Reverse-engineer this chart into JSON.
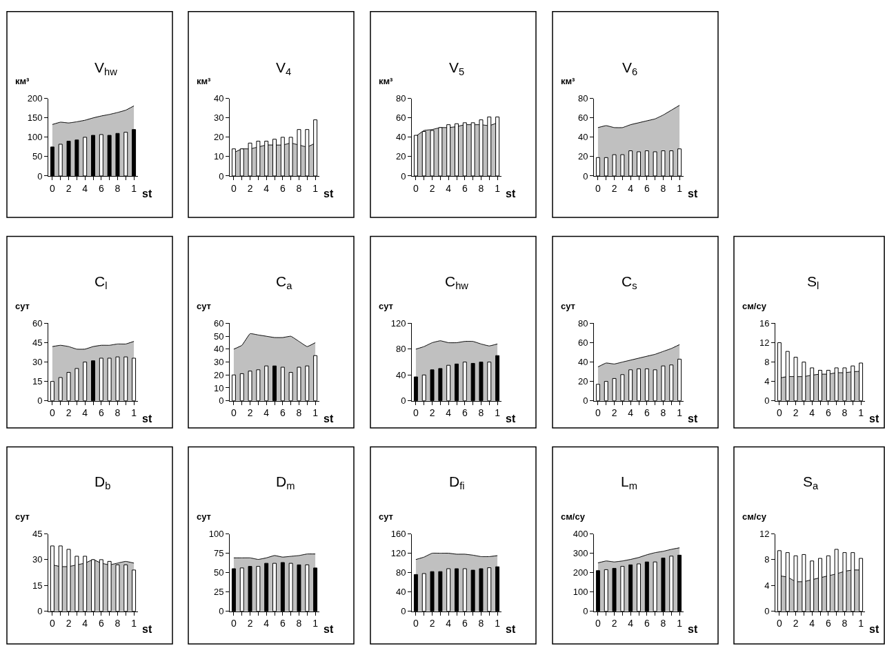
{
  "chart_data": [
    {
      "type": "bar",
      "title": "V$_{hw}$",
      "ylabel": "км³",
      "xlabel": "st",
      "categories": [
        "0",
        null,
        "2",
        null,
        "4",
        null,
        "6",
        null,
        "8",
        null,
        "1"
      ],
      "ylim": [
        0,
        200
      ],
      "yticks": [
        0,
        50,
        100,
        150,
        200
      ],
      "series": [
        {
          "type": "area",
          "color": "#c0c0c0",
          "values": [
            133,
            139,
            137,
            140,
            144,
            150,
            155,
            159,
            164,
            170,
            181
          ]
        },
        {
          "colors": [
            "#000000",
            "#ffffff",
            "#000000",
            "#000000",
            "#ffffff",
            "#000000",
            "#ffffff",
            "#000000",
            "#000000",
            "#ffffff",
            "#000000"
          ],
          "values": [
            75,
            82,
            90,
            93,
            100,
            105,
            107,
            105,
            110,
            113,
            120
          ]
        }
      ]
    },
    {
      "type": "bar",
      "title": "V$_{4}$",
      "ylabel": "км³",
      "xlabel": "st",
      "categories": [
        "0",
        null,
        "2",
        null,
        "4",
        null,
        "6",
        null,
        "8",
        null,
        "1"
      ],
      "ylim": [
        0,
        40
      ],
      "yticks": [
        0,
        10,
        20,
        30,
        40
      ],
      "series": [
        {
          "type": "area",
          "color": "#c0c0c0",
          "values": [
            12,
            14,
            14,
            15,
            16,
            16,
            16,
            17,
            16,
            15,
            17
          ]
        },
        {
          "type": "bar",
          "colors": [
            "#ffffff",
            "#ffffff",
            "#ffffff",
            "#ffffff",
            "#ffffff",
            "#ffffff",
            "#ffffff",
            "#ffffff",
            "#ffffff",
            "#ffffff",
            "#ffffff"
          ],
          "values": [
            14,
            14,
            17,
            18,
            18,
            19,
            20,
            20,
            24,
            24,
            29
          ]
        }
      ]
    },
    {
      "type": "bar",
      "title": "V$_{5}$",
      "ylabel": "км³",
      "xlabel": "st",
      "categories": [
        "0",
        null,
        "2",
        null,
        "4",
        null,
        "6",
        null,
        "8",
        null,
        "1"
      ],
      "ylim": [
        0,
        80
      ],
      "yticks": [
        0,
        20,
        40,
        60,
        80
      ],
      "series": [
        {
          "type": "area",
          "color": "#c0c0c0",
          "values": [
            41,
            47,
            48,
            50,
            50,
            51,
            53,
            53,
            53,
            52,
            55
          ]
        },
        {
          "type": "bar",
          "colors": [
            "#ffffff",
            "#ffffff",
            "#ffffff",
            "#ffffff",
            "#ffffff",
            "#ffffff",
            "#ffffff",
            "#ffffff",
            "#ffffff",
            "#ffffff",
            "#ffffff"
          ],
          "values": [
            42,
            46,
            47,
            50,
            53,
            54,
            55,
            55,
            58,
            61,
            61
          ]
        }
      ]
    },
    {
      "type": "bar",
      "title": "V$_{6}$",
      "ylabel": "км³",
      "xlabel": "st",
      "categories": [
        "0",
        null,
        "2",
        null,
        "4",
        null,
        "6",
        null,
        "8",
        null,
        "1"
      ],
      "ylim": [
        0,
        80
      ],
      "yticks": [
        0,
        20,
        40,
        60,
        80
      ],
      "series": [
        {
          "type": "area",
          "color": "#c0c0c0",
          "values": [
            50,
            52,
            50,
            50,
            53,
            55,
            57,
            59,
            63,
            68,
            73
          ]
        },
        {
          "type": "bar",
          "colors": [
            "#ffffff",
            "#ffffff",
            "#ffffff",
            "#ffffff",
            "#ffffff",
            "#ffffff",
            "#ffffff",
            "#ffffff",
            "#ffffff",
            "#ffffff",
            "#ffffff"
          ],
          "values": [
            19,
            19,
            22,
            22,
            26,
            25,
            26,
            25,
            26,
            26,
            28
          ]
        }
      ]
    },
    {
      "type": "bar",
      "title": "C$_{l}$",
      "ylabel": "сут",
      "xlabel": "st",
      "categories": [
        "0",
        null,
        "2",
        null,
        "4",
        null,
        "6",
        null,
        "8",
        null,
        "1"
      ],
      "ylim": [
        0,
        60
      ],
      "yticks": [
        0,
        15,
        30,
        45,
        60
      ],
      "series": [
        {
          "type": "area",
          "color": "#c0c0c0",
          "values": [
            42,
            43,
            42,
            40,
            40,
            42,
            43,
            43,
            44,
            44,
            46
          ]
        },
        {
          "type": "bar",
          "colors": [
            "#ffffff",
            "#ffffff",
            "#ffffff",
            "#ffffff",
            "#ffffff",
            "#000000",
            "#ffffff",
            "#ffffff",
            "#ffffff",
            "#ffffff",
            "#ffffff"
          ],
          "values": [
            15,
            18,
            22,
            25,
            30,
            31,
            33,
            33,
            34,
            34,
            33
          ]
        }
      ]
    },
    {
      "type": "bar",
      "title": "C$_{a}$",
      "ylabel": "сут",
      "xlabel": "st",
      "categories": [
        "0",
        null,
        "2",
        null,
        "4",
        null,
        "6",
        null,
        "8",
        null,
        "1"
      ],
      "ylim": [
        0,
        60
      ],
      "yticks": [
        0,
        10,
        20,
        30,
        40,
        50,
        60
      ],
      "series": [
        {
          "type": "area",
          "color": "#c0c0c0",
          "values": [
            40,
            43,
            52,
            51,
            50,
            49,
            49,
            50,
            46,
            42,
            45
          ]
        },
        {
          "type": "bar",
          "colors": [
            "#ffffff",
            "#ffffff",
            "#ffffff",
            "#ffffff",
            "#ffffff",
            "#000000",
            "#ffffff",
            "#ffffff",
            "#ffffff",
            "#ffffff",
            "#ffffff"
          ],
          "values": [
            20,
            21,
            23,
            24,
            27,
            27,
            26,
            22,
            26,
            27,
            35
          ]
        }
      ]
    },
    {
      "type": "bar",
      "title": "C$_{hw}$",
      "ylabel": "сут",
      "xlabel": "st",
      "categories": [
        "0",
        null,
        "2",
        null,
        "4",
        null,
        "6",
        null,
        "8",
        null,
        "1"
      ],
      "ylim": [
        0,
        120
      ],
      "yticks": [
        0,
        40,
        80,
        120
      ],
      "series": [
        {
          "type": "area",
          "color": "#c0c0c0",
          "values": [
            80,
            84,
            90,
            93,
            90,
            90,
            92,
            92,
            88,
            85,
            88
          ]
        },
        {
          "type": "bar",
          "colors": [
            "#000000",
            "#ffffff",
            "#000000",
            "#000000",
            "#ffffff",
            "#000000",
            "#ffffff",
            "#000000",
            "#000000",
            "#ffffff",
            "#000000"
          ],
          "values": [
            37,
            40,
            48,
            50,
            55,
            57,
            60,
            58,
            60,
            60,
            70
          ]
        }
      ]
    },
    {
      "type": "bar",
      "title": "C$_{s}$",
      "ylabel": "сут",
      "xlabel": "st",
      "categories": [
        "0",
        null,
        "2",
        null,
        "4",
        null,
        "6",
        null,
        "8",
        null,
        "1"
      ],
      "ylim": [
        0,
        80
      ],
      "yticks": [
        0,
        20,
        40,
        60,
        80
      ],
      "series": [
        {
          "type": "area",
          "color": "#c0c0c0",
          "values": [
            35,
            39,
            38,
            40,
            42,
            44,
            46,
            48,
            51,
            54,
            58
          ]
        },
        {
          "type": "bar",
          "colors": [
            "#ffffff",
            "#ffffff",
            "#ffffff",
            "#ffffff",
            "#ffffff",
            "#ffffff",
            "#ffffff",
            "#ffffff",
            "#ffffff",
            "#ffffff",
            "#ffffff"
          ],
          "values": [
            17,
            20,
            23,
            27,
            32,
            33,
            33,
            32,
            36,
            37,
            43
          ]
        }
      ]
    },
    {
      "type": "bar",
      "title": "S$_{l}$",
      "ylabel": "см/су",
      "xlabel": "st",
      "categories": [
        "0",
        null,
        "2",
        null,
        "4",
        null,
        "6",
        null,
        "8",
        null,
        "1"
      ],
      "ylim": [
        0,
        16
      ],
      "yticks": [
        0,
        4,
        8,
        12,
        16
      ],
      "series": [
        {
          "type": "area",
          "color": "#c0c0c0",
          "values": [
            4.7,
            5,
            5,
            5,
            5.3,
            5.5,
            5.5,
            5.8,
            5.8,
            6,
            6.1
          ]
        },
        {
          "type": "bar",
          "colors": [
            "#ffffff",
            "#ffffff",
            "#ffffff",
            "#ffffff",
            "#ffffff",
            "#ffffff",
            "#ffffff",
            "#ffffff",
            "#ffffff",
            "#ffffff",
            "#ffffff"
          ],
          "values": [
            12,
            10.2,
            9,
            8,
            6.8,
            6.3,
            6.3,
            6.8,
            6.8,
            7.2,
            7.8
          ]
        }
      ]
    },
    {
      "type": "bar",
      "title": "D$_{b}$",
      "ylabel": "сут",
      "xlabel": "st",
      "categories": [
        "0",
        null,
        "2",
        null,
        "4",
        null,
        "6",
        null,
        "8",
        null,
        "1"
      ],
      "ylim": [
        0,
        45
      ],
      "yticks": [
        0,
        15,
        30,
        45
      ],
      "series": [
        {
          "type": "area",
          "color": "#c0c0c0",
          "values": [
            27,
            26,
            26,
            27,
            28,
            30,
            28,
            27,
            28,
            29,
            28
          ]
        },
        {
          "type": "bar",
          "colors": [
            "#ffffff",
            "#ffffff",
            "#ffffff",
            "#ffffff",
            "#ffffff",
            "#ffffff",
            "#ffffff",
            "#ffffff",
            "#ffffff",
            "#ffffff",
            "#ffffff"
          ],
          "values": [
            38,
            38,
            36,
            32,
            32,
            30,
            30,
            29,
            27,
            27,
            24
          ]
        }
      ]
    },
    {
      "type": "bar",
      "title": "D$_{m}$",
      "ylabel": "сут",
      "xlabel": "st",
      "categories": [
        "0",
        null,
        "2",
        null,
        "4",
        null,
        "6",
        null,
        "8",
        null,
        "1"
      ],
      "ylim": [
        0,
        100
      ],
      "yticks": [
        0,
        25,
        50,
        75,
        100
      ],
      "series": [
        {
          "type": "area",
          "color": "#c0c0c0",
          "values": [
            69,
            69,
            69,
            67,
            69,
            72,
            70,
            71,
            72,
            74,
            74
          ]
        },
        {
          "type": "bar",
          "colors": [
            "#000000",
            "#ffffff",
            "#000000",
            "#ffffff",
            "#000000",
            "#ffffff",
            "#000000",
            "#ffffff",
            "#000000",
            "#ffffff",
            "#000000"
          ],
          "values": [
            55,
            56,
            58,
            58,
            62,
            62,
            63,
            62,
            60,
            60,
            56
          ]
        }
      ]
    },
    {
      "type": "bar",
      "title": "D$_{fi}$",
      "ylabel": "сут",
      "xlabel": "st",
      "categories": [
        "0",
        null,
        "2",
        null,
        "4",
        null,
        "6",
        null,
        "8",
        null,
        "1"
      ],
      "ylim": [
        0,
        160
      ],
      "yticks": [
        0,
        40,
        80,
        120,
        160
      ],
      "series": [
        {
          "type": "area",
          "color": "#c0c0c0",
          "values": [
            107,
            112,
            120,
            120,
            120,
            118,
            118,
            116,
            113,
            113,
            115
          ]
        },
        {
          "type": "bar",
          "colors": [
            "#000000",
            "#ffffff",
            "#000000",
            "#000000",
            "#ffffff",
            "#000000",
            "#ffffff",
            "#000000",
            "#000000",
            "#ffffff",
            "#000000"
          ],
          "values": [
            76,
            78,
            82,
            82,
            88,
            88,
            88,
            85,
            88,
            90,
            92
          ]
        }
      ]
    },
    {
      "type": "bar",
      "title": "L$_{m}$",
      "ylabel": "см/су",
      "xlabel": "st",
      "categories": [
        "0",
        null,
        "2",
        null,
        "4",
        null,
        "6",
        null,
        "8",
        null,
        "1"
      ],
      "ylim": [
        0,
        400
      ],
      "yticks": [
        0,
        100,
        200,
        300,
        400
      ],
      "series": [
        {
          "type": "area",
          "color": "#c0c0c0",
          "values": [
            250,
            260,
            255,
            260,
            268,
            278,
            292,
            303,
            310,
            320,
            328
          ]
        },
        {
          "type": "bar",
          "colors": [
            "#000000",
            "#ffffff",
            "#000000",
            "#ffffff",
            "#000000",
            "#ffffff",
            "#000000",
            "#ffffff",
            "#000000",
            "#ffffff",
            "#000000"
          ],
          "values": [
            210,
            215,
            222,
            232,
            240,
            245,
            255,
            255,
            275,
            285,
            290
          ]
        }
      ]
    },
    {
      "type": "bar",
      "title": "S$_{a}$",
      "ylabel": "см/су",
      "xlabel": "st",
      "categories": [
        "0",
        null,
        "2",
        null,
        "4",
        null,
        "6",
        null,
        "8",
        null,
        "1"
      ],
      "ylim": [
        0,
        12
      ],
      "yticks": [
        0,
        4,
        8,
        12
      ],
      "series": [
        {
          "type": "area",
          "color": "#c0c0c0",
          "values": [
            5.5,
            5.3,
            4.6,
            4.6,
            4.9,
            5.2,
            5.5,
            5.8,
            6.2,
            6.4,
            6.4
          ]
        },
        {
          "type": "bar",
          "colors": [
            "#ffffff",
            "#ffffff",
            "#ffffff",
            "#ffffff",
            "#ffffff",
            "#ffffff",
            "#ffffff",
            "#ffffff",
            "#ffffff",
            "#ffffff",
            "#ffffff"
          ],
          "values": [
            9.4,
            9.1,
            8.6,
            8.8,
            7.8,
            8.2,
            8.6,
            9.6,
            9.1,
            9.1,
            8.2
          ]
        }
      ]
    }
  ]
}
